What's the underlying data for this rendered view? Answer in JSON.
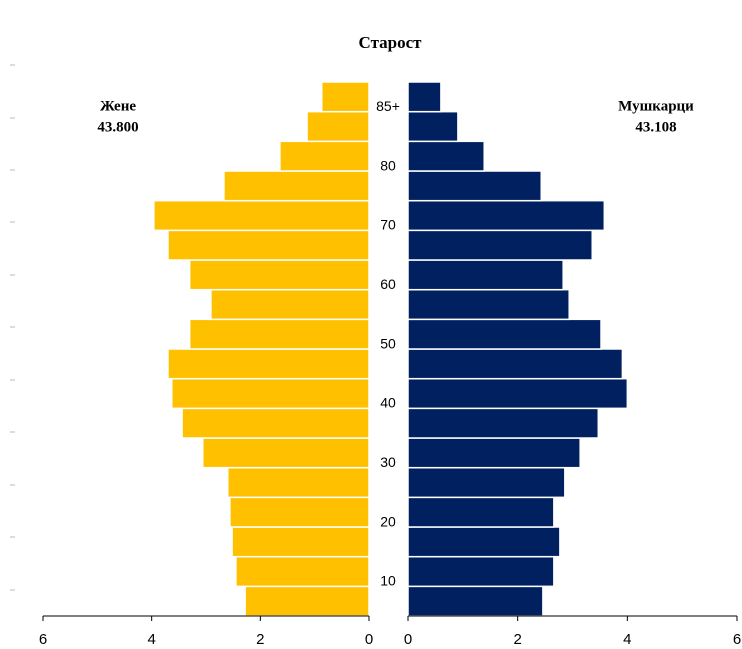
{
  "chart_data": {
    "type": "pyramid",
    "title": "Старост",
    "categories": [
      null,
      "10",
      null,
      "20",
      null,
      "30",
      null,
      "40",
      null,
      "50",
      null,
      "60",
      null,
      "70",
      null,
      "80",
      null,
      "85+"
    ],
    "series": [
      {
        "name": "Жене",
        "total": "43.800",
        "color": "#ffc000",
        "side": "left",
        "values": [
          2.28,
          2.45,
          2.52,
          2.56,
          2.6,
          3.06,
          3.44,
          3.63,
          3.7,
          3.3,
          2.91,
          3.3,
          3.7,
          3.96,
          2.67,
          1.64,
          1.14,
          0.87
        ]
      },
      {
        "name": "Мушкарци",
        "total": "43.108",
        "color": "#002060",
        "side": "right",
        "values": [
          2.46,
          2.66,
          2.77,
          2.66,
          2.86,
          3.14,
          3.47,
          4.0,
          3.91,
          3.52,
          2.94,
          2.83,
          3.36,
          3.58,
          2.43,
          1.39,
          0.91,
          0.6
        ]
      }
    ],
    "xlim": [
      0,
      6
    ],
    "xticks": [
      0,
      2,
      4,
      6
    ]
  }
}
